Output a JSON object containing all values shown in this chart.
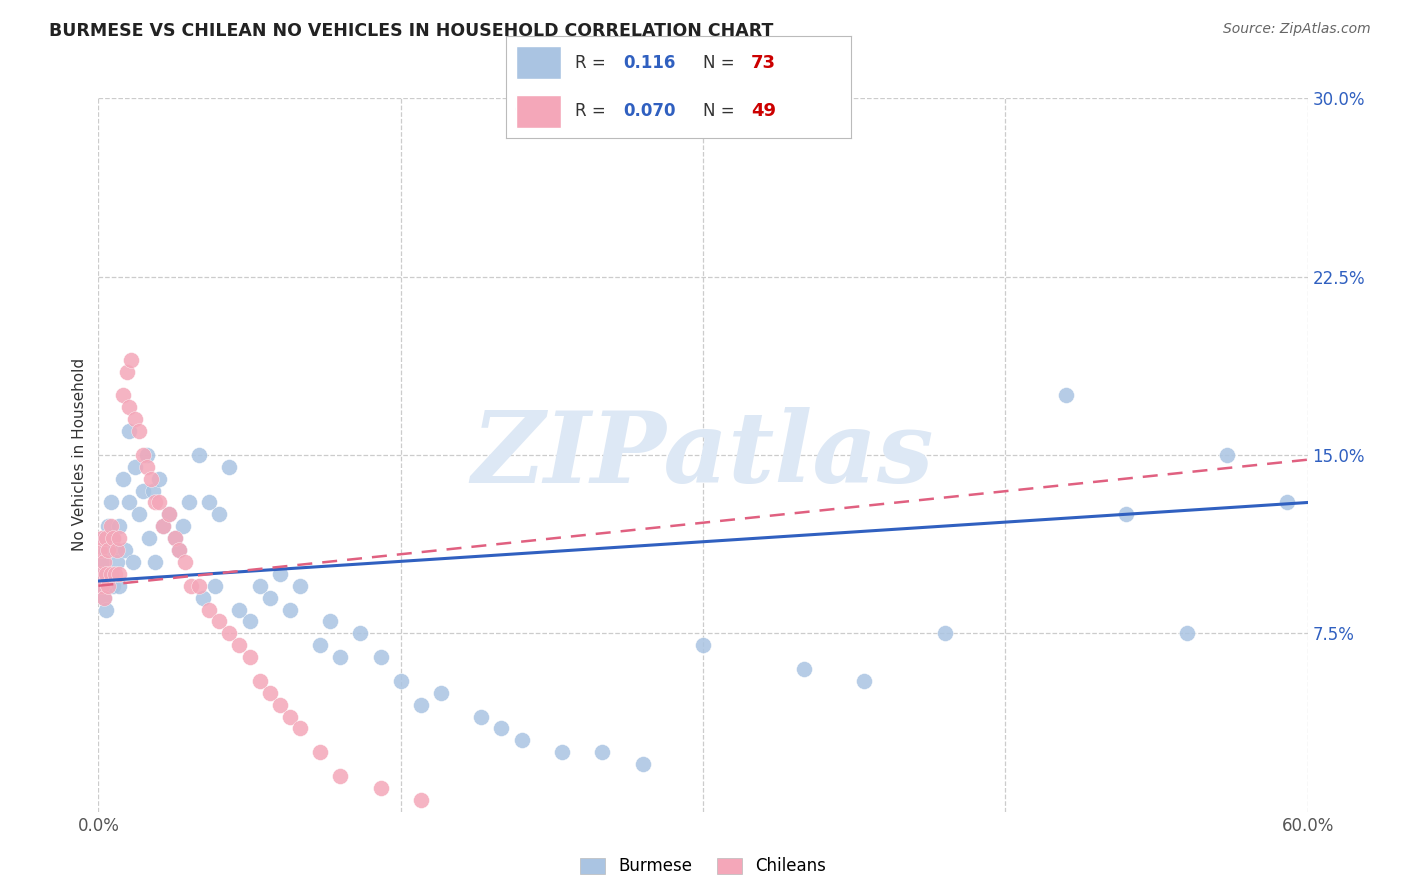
{
  "title": "BURMESE VS CHILEAN NO VEHICLES IN HOUSEHOLD CORRELATION CHART",
  "source": "Source: ZipAtlas.com",
  "ylabel": "No Vehicles in Household",
  "xlim": [
    0.0,
    0.6
  ],
  "ylim": [
    0.0,
    0.3
  ],
  "burmese_R": 0.116,
  "burmese_N": 73,
  "chilean_R": 0.07,
  "chilean_N": 49,
  "burmese_color": "#aac4e2",
  "chilean_color": "#f4a7b9",
  "burmese_line_color": "#3060c0",
  "chilean_line_color": "#e06080",
  "watermark_text": "ZIPatlas",
  "watermark_color": "#dde8f5",
  "legend_R_color": "#3060c0",
  "legend_N_color": "#cc0000",
  "ytick_color": "#3060c0",
  "xtick_color": "#555555",
  "burmese_line_start_y": 0.097,
  "burmese_line_end_y": 0.13,
  "chilean_line_start_y": 0.095,
  "chilean_line_end_y": 0.148,
  "burmese_x": [
    0.001,
    0.002,
    0.002,
    0.003,
    0.003,
    0.004,
    0.004,
    0.004,
    0.005,
    0.005,
    0.006,
    0.006,
    0.007,
    0.007,
    0.008,
    0.009,
    0.01,
    0.01,
    0.012,
    0.013,
    0.015,
    0.015,
    0.017,
    0.018,
    0.02,
    0.022,
    0.024,
    0.025,
    0.027,
    0.028,
    0.03,
    0.032,
    0.035,
    0.038,
    0.04,
    0.042,
    0.045,
    0.05,
    0.052,
    0.055,
    0.058,
    0.06,
    0.065,
    0.07,
    0.075,
    0.08,
    0.085,
    0.09,
    0.095,
    0.1,
    0.11,
    0.115,
    0.12,
    0.13,
    0.14,
    0.15,
    0.16,
    0.17,
    0.19,
    0.2,
    0.21,
    0.23,
    0.25,
    0.27,
    0.3,
    0.35,
    0.38,
    0.42,
    0.48,
    0.51,
    0.54,
    0.56,
    0.59
  ],
  "burmese_y": [
    0.1,
    0.095,
    0.105,
    0.09,
    0.115,
    0.085,
    0.11,
    0.1,
    0.095,
    0.12,
    0.13,
    0.1,
    0.115,
    0.095,
    0.11,
    0.105,
    0.095,
    0.12,
    0.14,
    0.11,
    0.16,
    0.13,
    0.105,
    0.145,
    0.125,
    0.135,
    0.15,
    0.115,
    0.135,
    0.105,
    0.14,
    0.12,
    0.125,
    0.115,
    0.11,
    0.12,
    0.13,
    0.15,
    0.09,
    0.13,
    0.095,
    0.125,
    0.145,
    0.085,
    0.08,
    0.095,
    0.09,
    0.1,
    0.085,
    0.095,
    0.07,
    0.08,
    0.065,
    0.075,
    0.065,
    0.055,
    0.045,
    0.05,
    0.04,
    0.035,
    0.03,
    0.025,
    0.025,
    0.02,
    0.07,
    0.06,
    0.055,
    0.075,
    0.175,
    0.125,
    0.075,
    0.15,
    0.13
  ],
  "chilean_x": [
    0.001,
    0.001,
    0.002,
    0.002,
    0.003,
    0.003,
    0.004,
    0.004,
    0.005,
    0.005,
    0.006,
    0.006,
    0.007,
    0.008,
    0.009,
    0.01,
    0.01,
    0.012,
    0.014,
    0.015,
    0.016,
    0.018,
    0.02,
    0.022,
    0.024,
    0.026,
    0.028,
    0.03,
    0.032,
    0.035,
    0.038,
    0.04,
    0.043,
    0.046,
    0.05,
    0.055,
    0.06,
    0.065,
    0.07,
    0.075,
    0.08,
    0.085,
    0.09,
    0.095,
    0.1,
    0.11,
    0.12,
    0.14,
    0.16
  ],
  "chilean_y": [
    0.1,
    0.11,
    0.095,
    0.115,
    0.09,
    0.105,
    0.1,
    0.115,
    0.095,
    0.11,
    0.1,
    0.12,
    0.115,
    0.1,
    0.11,
    0.1,
    0.115,
    0.175,
    0.185,
    0.17,
    0.19,
    0.165,
    0.16,
    0.15,
    0.145,
    0.14,
    0.13,
    0.13,
    0.12,
    0.125,
    0.115,
    0.11,
    0.105,
    0.095,
    0.095,
    0.085,
    0.08,
    0.075,
    0.07,
    0.065,
    0.055,
    0.05,
    0.045,
    0.04,
    0.035,
    0.025,
    0.015,
    0.01,
    0.005
  ]
}
